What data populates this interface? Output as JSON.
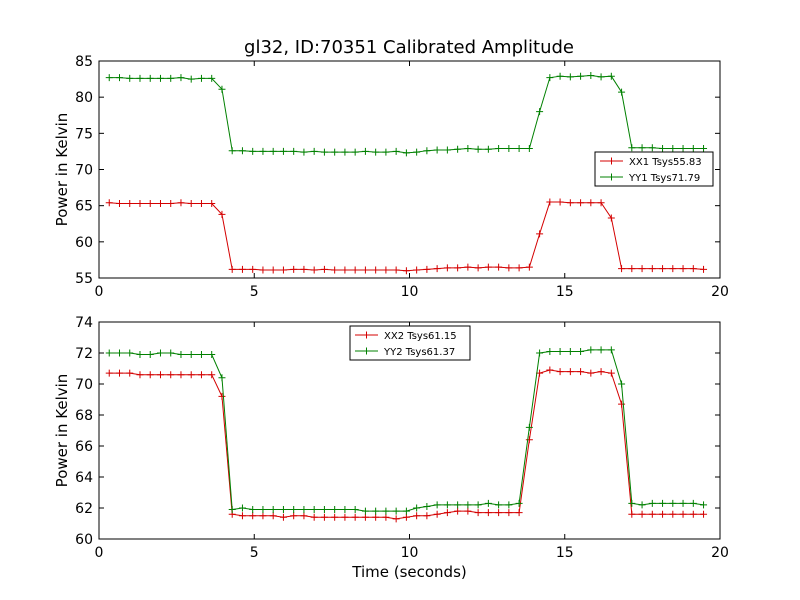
{
  "figure": {
    "title": "gl32, ID:70351 Calibrated Amplitude"
  },
  "chart_data": [
    {
      "type": "line",
      "title": "gl32, ID:70351 Calibrated Amplitude",
      "xlabel": "",
      "ylabel": "Power in Kelvin",
      "xlim": [
        0,
        20
      ],
      "ylim": [
        55,
        85
      ],
      "xticks": [
        0,
        5,
        10,
        15,
        20
      ],
      "yticks": [
        55,
        60,
        65,
        70,
        75,
        80,
        85
      ],
      "grid": false,
      "legend_position": "center-right",
      "x": [
        0.33,
        0.66,
        0.99,
        1.32,
        1.65,
        1.98,
        2.31,
        2.64,
        2.97,
        3.3,
        3.63,
        3.96,
        4.29,
        4.62,
        4.95,
        5.28,
        5.61,
        5.94,
        6.27,
        6.6,
        6.93,
        7.26,
        7.59,
        7.92,
        8.25,
        8.58,
        8.91,
        9.24,
        9.57,
        9.9,
        10.23,
        10.56,
        10.89,
        11.22,
        11.55,
        11.88,
        12.21,
        12.54,
        12.87,
        13.2,
        13.53,
        13.86,
        14.19,
        14.52,
        14.85,
        15.18,
        15.51,
        15.84,
        16.17,
        16.5,
        16.83,
        17.16,
        17.49,
        17.82,
        18.15,
        18.48,
        18.81,
        19.14,
        19.47
      ],
      "series": [
        {
          "name": "XX1 Tsys55.83",
          "color": "#d40000",
          "values": [
            65.4,
            65.3,
            65.3,
            65.3,
            65.3,
            65.3,
            65.3,
            65.4,
            65.3,
            65.3,
            65.3,
            63.8,
            56.2,
            56.2,
            56.2,
            56.1,
            56.1,
            56.1,
            56.2,
            56.2,
            56.1,
            56.2,
            56.1,
            56.1,
            56.1,
            56.1,
            56.1,
            56.1,
            56.1,
            56.0,
            56.1,
            56.2,
            56.3,
            56.4,
            56.4,
            56.5,
            56.4,
            56.5,
            56.5,
            56.4,
            56.4,
            56.5,
            61.1,
            65.5,
            65.5,
            65.4,
            65.4,
            65.4,
            65.4,
            63.3,
            56.3,
            56.3,
            56.3,
            56.3,
            56.3,
            56.3,
            56.3,
            56.3,
            56.2
          ],
          "_note": ""
        },
        {
          "name": "YY1 Tsys71.79",
          "color": "#008000",
          "values": [
            82.7,
            82.7,
            82.6,
            82.6,
            82.6,
            82.6,
            82.6,
            82.7,
            82.5,
            82.6,
            82.6,
            81.1,
            72.6,
            72.6,
            72.5,
            72.5,
            72.5,
            72.5,
            72.5,
            72.4,
            72.5,
            72.4,
            72.4,
            72.4,
            72.4,
            72.5,
            72.4,
            72.4,
            72.5,
            72.3,
            72.4,
            72.6,
            72.7,
            72.7,
            72.8,
            72.9,
            72.8,
            72.8,
            72.9,
            72.9,
            72.9,
            72.9,
            78.0,
            82.7,
            82.9,
            82.8,
            82.9,
            83.0,
            82.8,
            82.9,
            80.7,
            73.0,
            73.0,
            73.0,
            72.9,
            72.9,
            72.9,
            72.9,
            72.9
          ]
        }
      ]
    },
    {
      "type": "line",
      "title": "",
      "xlabel": "Time (seconds)",
      "ylabel": "Power in Kelvin",
      "xlim": [
        0,
        20
      ],
      "ylim": [
        60,
        74
      ],
      "xticks": [
        0,
        5,
        10,
        15,
        20
      ],
      "yticks": [
        60,
        62,
        64,
        66,
        68,
        70,
        72,
        74
      ],
      "grid": false,
      "legend_position": "top-center",
      "x": [
        0.33,
        0.66,
        0.99,
        1.32,
        1.65,
        1.98,
        2.31,
        2.64,
        2.97,
        3.3,
        3.63,
        3.96,
        4.29,
        4.62,
        4.95,
        5.28,
        5.61,
        5.94,
        6.27,
        6.6,
        6.93,
        7.26,
        7.59,
        7.92,
        8.25,
        8.58,
        8.91,
        9.24,
        9.57,
        9.9,
        10.23,
        10.56,
        10.89,
        11.22,
        11.55,
        11.88,
        12.21,
        12.54,
        12.87,
        13.2,
        13.53,
        13.86,
        14.19,
        14.52,
        14.85,
        15.18,
        15.51,
        15.84,
        16.17,
        16.5,
        16.83,
        17.16,
        17.49,
        17.82,
        18.15,
        18.48,
        18.81,
        19.14,
        19.47
      ],
      "series": [
        {
          "name": "XX2 Tsys61.15",
          "color": "#d40000",
          "values": [
            70.7,
            70.7,
            70.7,
            70.6,
            70.6,
            70.6,
            70.6,
            70.6,
            70.6,
            70.6,
            70.6,
            69.2,
            61.6,
            61.5,
            61.5,
            61.5,
            61.5,
            61.4,
            61.5,
            61.5,
            61.4,
            61.4,
            61.4,
            61.4,
            61.4,
            61.4,
            61.4,
            61.4,
            61.3,
            61.4,
            61.5,
            61.5,
            61.6,
            61.7,
            61.8,
            61.8,
            61.7,
            61.7,
            61.7,
            61.7,
            61.7,
            66.4,
            70.7,
            70.9,
            70.8,
            70.8,
            70.8,
            70.7,
            70.8,
            70.7,
            68.7,
            61.6,
            61.6,
            61.6,
            61.6,
            61.6,
            61.6,
            61.6,
            61.6
          ]
        },
        {
          "name": "YY2 Tsys61.37",
          "color": "#008000",
          "values": [
            72.0,
            72.0,
            72.0,
            71.9,
            71.9,
            72.0,
            72.0,
            71.9,
            71.9,
            71.9,
            71.9,
            70.4,
            61.9,
            62.0,
            61.9,
            61.9,
            61.9,
            61.9,
            61.9,
            61.9,
            61.9,
            61.9,
            61.9,
            61.9,
            61.9,
            61.8,
            61.8,
            61.8,
            61.8,
            61.8,
            62.0,
            62.1,
            62.2,
            62.2,
            62.2,
            62.2,
            62.2,
            62.3,
            62.2,
            62.2,
            62.3,
            67.2,
            72.0,
            72.1,
            72.1,
            72.1,
            72.1,
            72.2,
            72.2,
            72.2,
            70.0,
            62.3,
            62.2,
            62.3,
            62.3,
            62.3,
            62.3,
            62.3,
            62.2
          ]
        }
      ]
    }
  ]
}
